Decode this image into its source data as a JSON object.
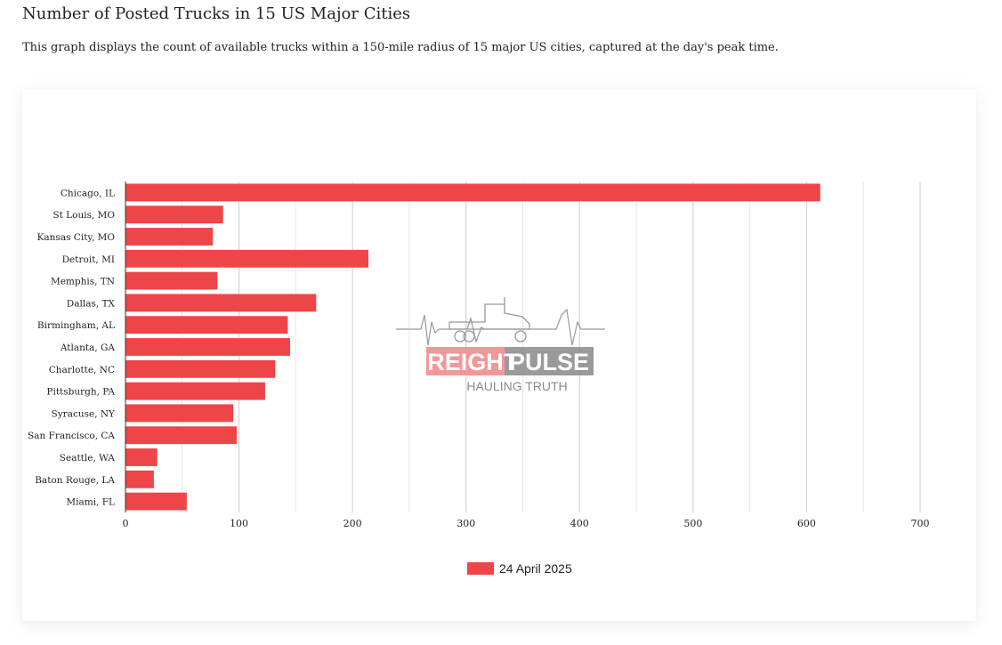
{
  "page": {
    "title": "Number of Posted Trucks in 15 US Major Cities",
    "description": "This graph displays the count of available trucks within a 150-mile radius of 15 major US cities, captured at the day's peak time."
  },
  "watermark": {
    "brand_left": "FREIGHT",
    "brand_right": "PULSE",
    "tagline": "HAULING TRUTH"
  },
  "chart_data": {
    "type": "bar",
    "orientation": "horizontal",
    "categories": [
      "Chicago, IL",
      "St Louis, MO",
      "Kansas City, MO",
      "Detroit, MI",
      "Memphis, TN",
      "Dallas, TX",
      "Birmingham, AL",
      "Atlanta, GA",
      "Charlotte, NC",
      "Pittsburgh, PA",
      "Syracuse, NY",
      "San Francisco, CA",
      "Seattle, WA",
      "Baton Rouge, LA",
      "Miami, FL"
    ],
    "series": [
      {
        "name": "24 April 2025",
        "values": [
          612,
          86,
          77,
          214,
          81,
          168,
          143,
          145,
          132,
          123,
          95,
          98,
          28,
          25,
          54
        ],
        "color": "#ee4548"
      }
    ],
    "xticks": [
      0,
      100,
      200,
      300,
      400,
      500,
      600,
      700
    ],
    "xlim": [
      0,
      700
    ],
    "grid": true,
    "legend_position": "bottom"
  }
}
